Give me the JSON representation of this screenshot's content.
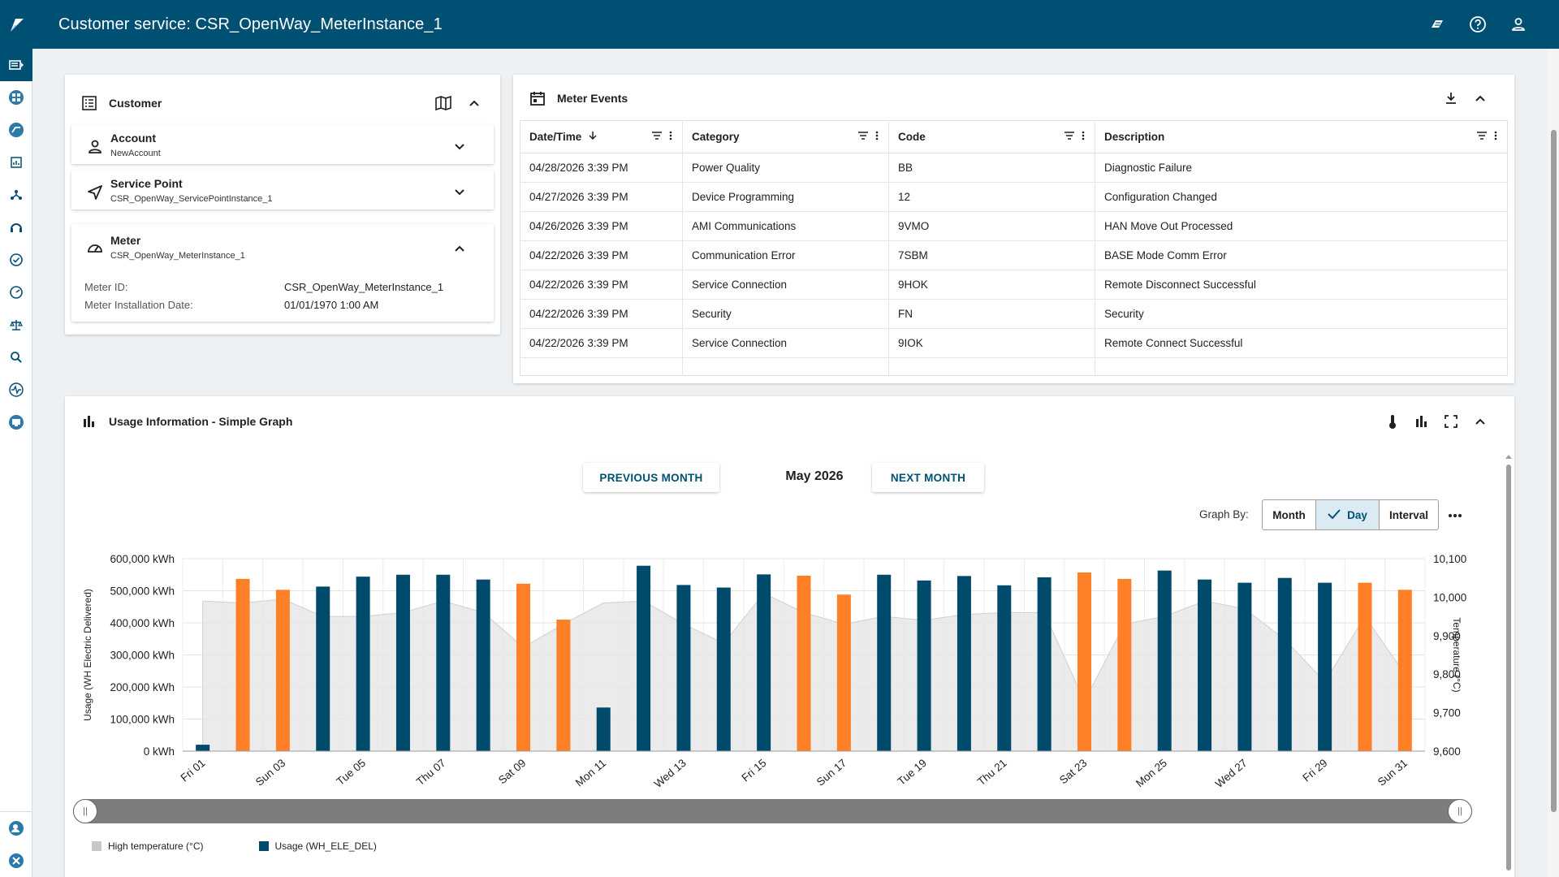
{
  "header": {
    "title": "Customer service: CSR_OpenWay_MeterInstance_1"
  },
  "rail": {
    "icons": [
      "logo-icon",
      "side-panel-icon",
      "dashboard-icon",
      "meter-read-icon",
      "reports-icon",
      "network-icon",
      "customer-service-icon",
      "check-circle-icon",
      "gauge-icon",
      "balance-icon",
      "search-icon",
      "pulse-icon",
      "device-icon",
      "admin-user-icon",
      "tools-icon"
    ]
  },
  "customer": {
    "title": "Customer",
    "account": {
      "label": "Account",
      "value": "NewAccount"
    },
    "service_point": {
      "label": "Service Point",
      "value": "CSR_OpenWay_ServicePointInstance_1"
    },
    "meter": {
      "label": "Meter",
      "value": "CSR_OpenWay_MeterInstance_1",
      "details": [
        {
          "label": "Meter ID:",
          "value": "CSR_OpenWay_MeterInstance_1"
        },
        {
          "label": "Meter Installation Date:",
          "value": "01/01/1970 1:00 AM"
        }
      ]
    }
  },
  "events": {
    "title": "Meter Events",
    "columns": [
      "Date/Time",
      "Category",
      "Code",
      "Description"
    ],
    "rows": [
      [
        "04/28/2026 3:39 PM",
        "Power Quality",
        "BB",
        "Diagnostic Failure"
      ],
      [
        "04/27/2026 3:39 PM",
        "Device Programming",
        "12",
        "Configuration Changed"
      ],
      [
        "04/26/2026 3:39 PM",
        "AMI Communications",
        "9VMO",
        "HAN Move Out Processed"
      ],
      [
        "04/22/2026 3:39 PM",
        "Communication Error",
        "7SBM",
        "BASE Mode Comm Error"
      ],
      [
        "04/22/2026 3:39 PM",
        "Service Connection",
        "9HOK",
        "Remote Disconnect Successful"
      ],
      [
        "04/22/2026 3:39 PM",
        "Security",
        "FN",
        "Security"
      ],
      [
        "04/22/2026 3:39 PM",
        "Service Connection",
        "9IOK",
        "Remote Connect Successful"
      ]
    ]
  },
  "usage": {
    "title": "Usage Information - Simple Graph",
    "prev_label": "PREVIOUS MONTH",
    "next_label": "NEXT MONTH",
    "month_label": "May 2026",
    "graph_by_label": "Graph By:",
    "graph_by_options": [
      "Month",
      "Day",
      "Interval"
    ],
    "graph_by_selected": "Day",
    "legend": [
      "High temperature (°C)",
      "Usage (WH_ELE_DEL)"
    ],
    "colors": {
      "usage": "#004b6b",
      "weekend": "#ff7f27",
      "temperature": "#cfcfcf"
    }
  },
  "chart_data": {
    "type": "bar",
    "categories": [
      "Fri 01",
      "Sat 02",
      "Sun 03",
      "Mon 04",
      "Tue 05",
      "Wed 06",
      "Thu 07",
      "Fri 08",
      "Sat 09",
      "Sun 10",
      "Mon 11",
      "Tue 12",
      "Wed 13",
      "Thu 14",
      "Fri 15",
      "Sat 16",
      "Sun 17",
      "Mon 18",
      "Tue 19",
      "Wed 20",
      "Thu 21",
      "Fri 22",
      "Sat 23",
      "Sun 24",
      "Mon 25",
      "Tue 26",
      "Wed 27",
      "Thu 28",
      "Fri 29",
      "Sat 30",
      "Sun 31"
    ],
    "tick_labels": [
      "Fri 01",
      "Sun 03",
      "Tue 05",
      "Thu 07",
      "Sat 09",
      "Mon 11",
      "Wed 13",
      "Fri 15",
      "Sun 17",
      "Tue 19",
      "Thu 21",
      "Sat 23",
      "Mon 25",
      "Wed 27",
      "Fri 29",
      "Sun 31"
    ],
    "series": [
      {
        "name": "Usage (WH_ELE_DEL)",
        "axis": "left",
        "values": [
          20000,
          537000,
          503000,
          513000,
          544000,
          550000,
          550000,
          535000,
          522000,
          410000,
          136000,
          578000,
          518000,
          510000,
          551000,
          547000,
          488000,
          550000,
          532000,
          546000,
          517000,
          542000,
          557000,
          537000,
          563000,
          535000,
          525000,
          540000,
          525000,
          525000,
          503000
        ],
        "weekend": [
          false,
          true,
          true,
          false,
          false,
          false,
          false,
          false,
          true,
          true,
          false,
          false,
          false,
          false,
          false,
          true,
          true,
          false,
          false,
          false,
          false,
          false,
          true,
          true,
          false,
          false,
          false,
          false,
          false,
          true,
          true
        ]
      },
      {
        "name": "High temperature (°C)",
        "axis": "right",
        "type": "area",
        "values": [
          9990,
          9985,
          9995,
          9950,
          9950,
          9960,
          9990,
          9960,
          9870,
          9930,
          9985,
          9990,
          9930,
          9880,
          10010,
          9960,
          9930,
          9950,
          9940,
          9955,
          9960,
          9960,
          9730,
          9930,
          9950,
          9990,
          9970,
          9890,
          9780,
          9950,
          9800
        ]
      }
    ],
    "ylabel": "Usage (WH Electric Delivered)",
    "y2label": "Temperature (°C)",
    "ylim": [
      0,
      600000
    ],
    "y_ticks": [
      "0 kWh",
      "100,000 kWh",
      "200,000 kWh",
      "300,000 kWh",
      "400,000 kWh",
      "500,000 kWh",
      "600,000 kWh"
    ],
    "y2lim": [
      9600,
      10100
    ],
    "y2_ticks": [
      "9,600",
      "9,700",
      "9,800",
      "9,900",
      "10,000",
      "10,100"
    ],
    "grid": true,
    "legend_position": "bottom-left"
  }
}
